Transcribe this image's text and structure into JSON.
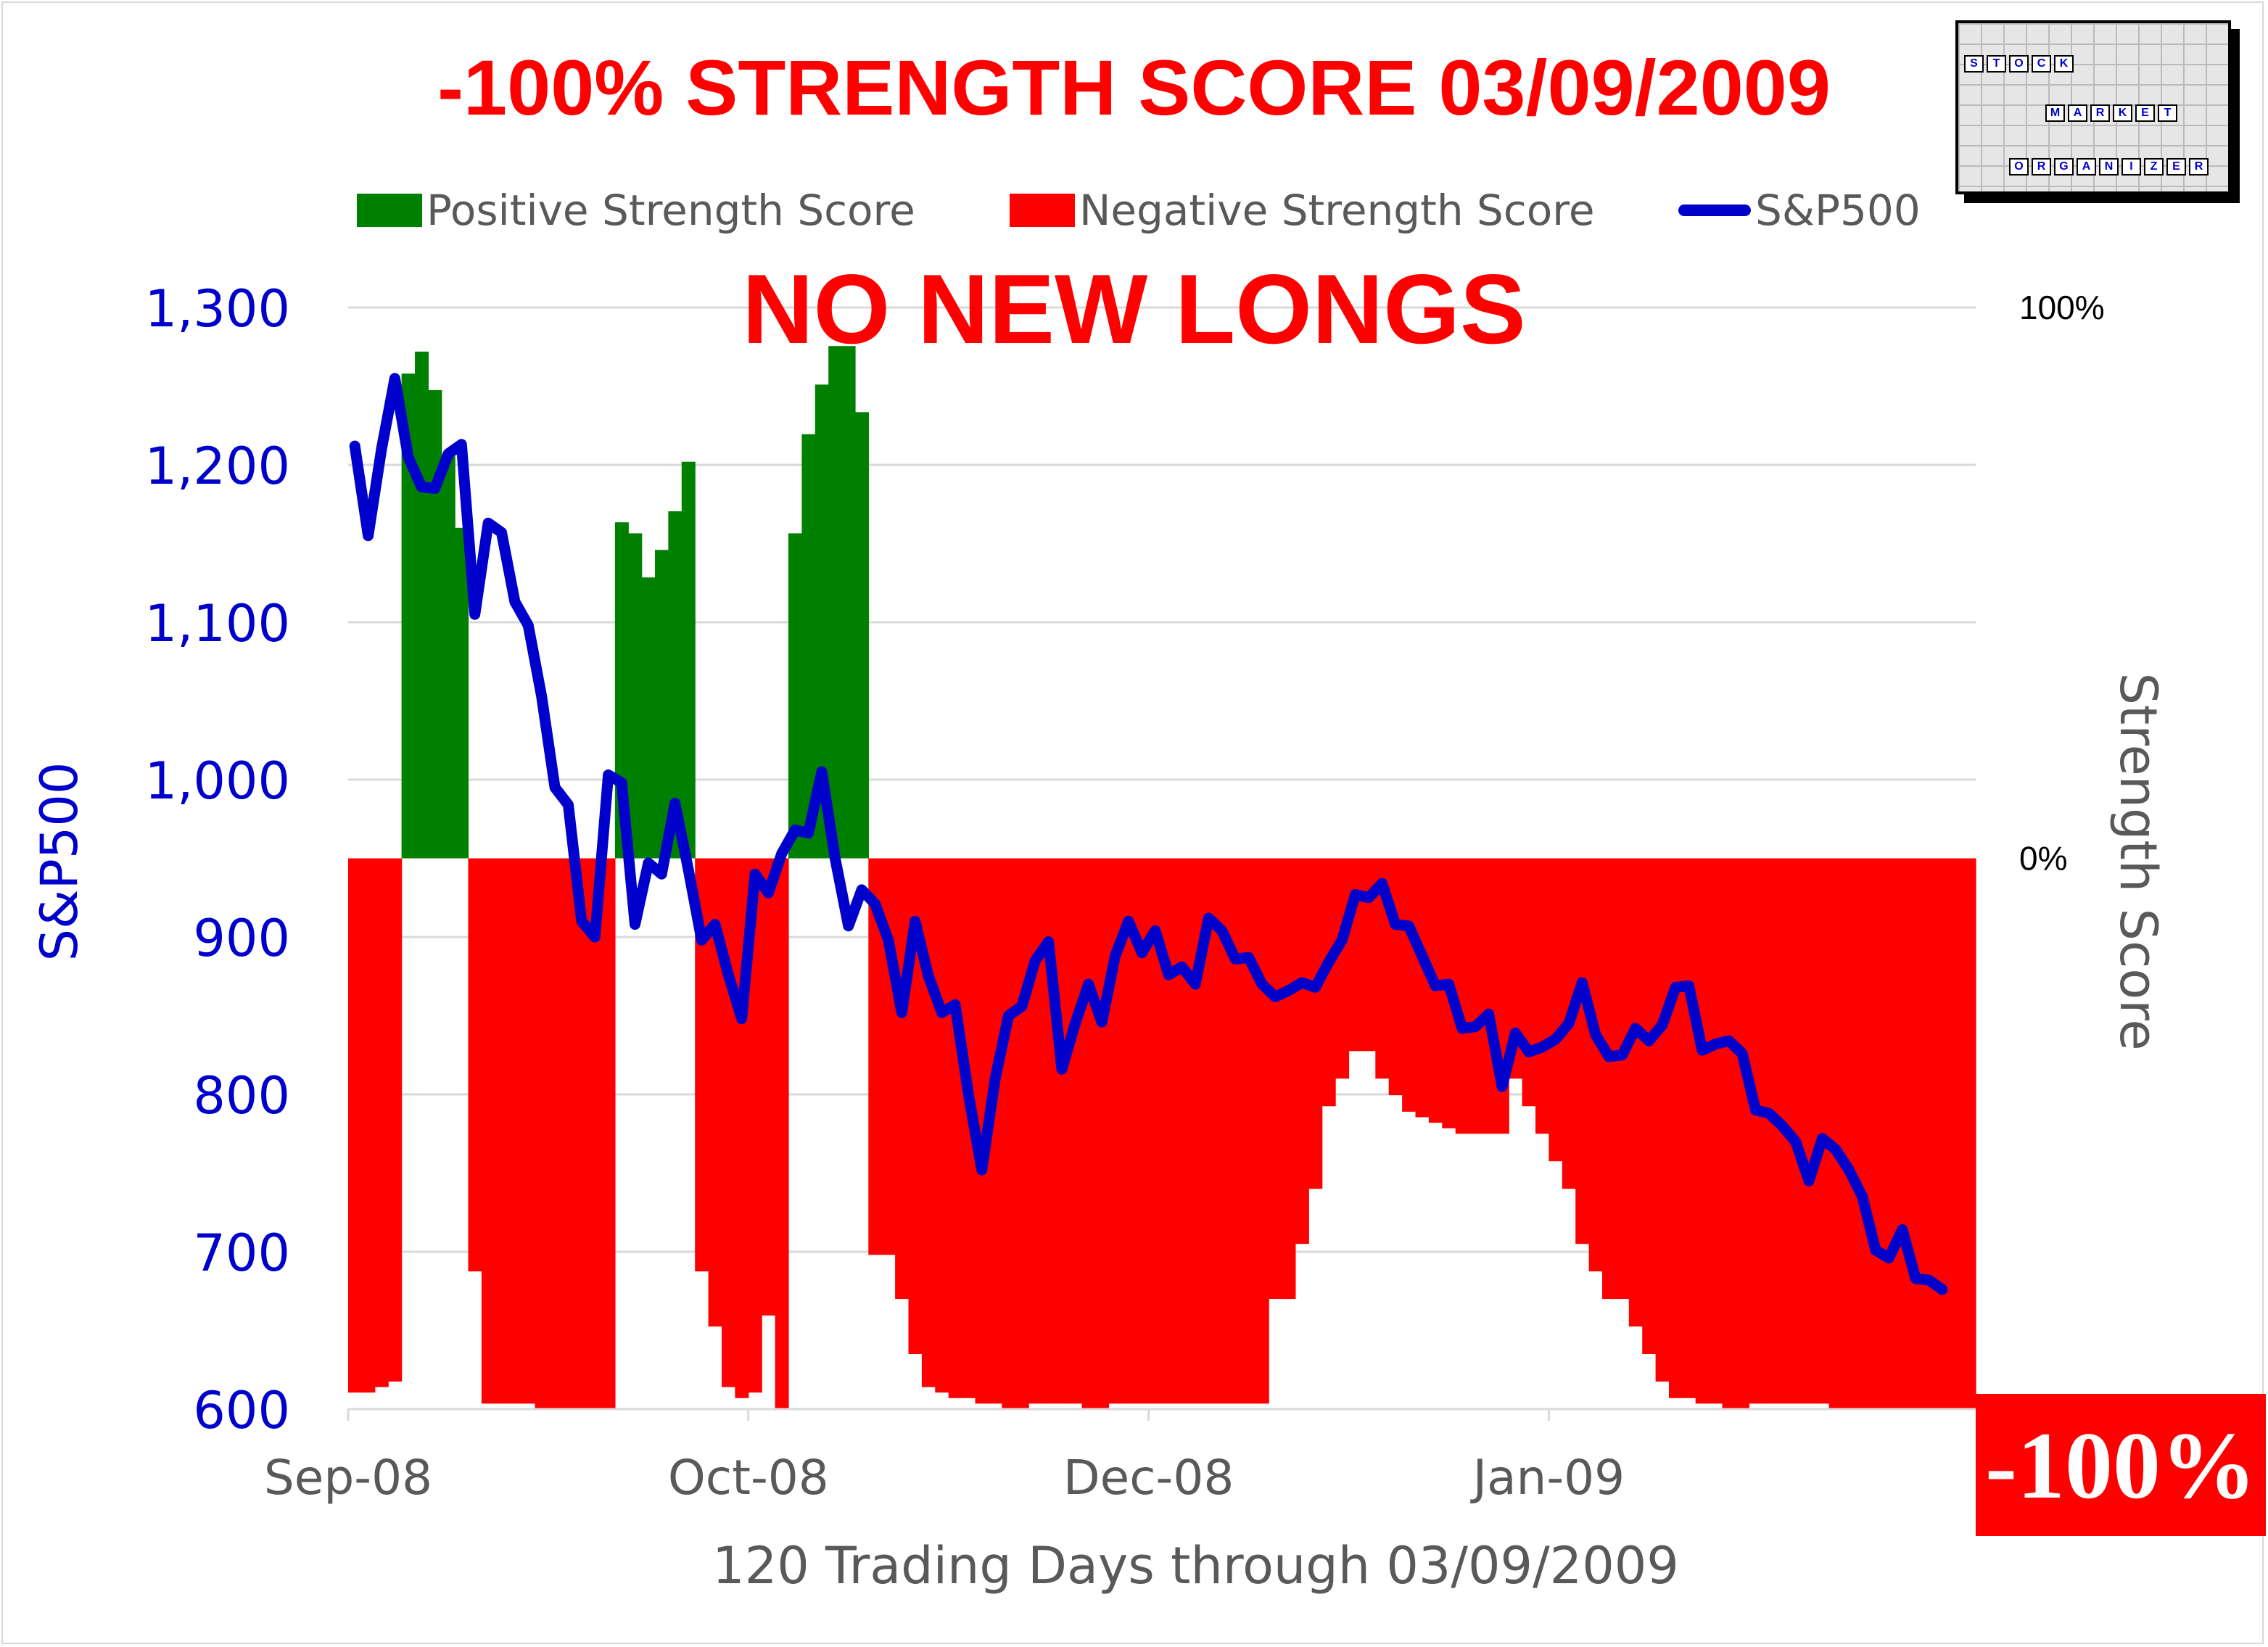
{
  "title": "-100% STRENGTH SCORE 03/09/2009",
  "banner": "NO NEW LONGS",
  "badge": "-100%",
  "logo": {
    "words": [
      "STOCK",
      "MARKET",
      "ORGANIZER"
    ]
  },
  "colors": {
    "positive": "#008000",
    "negative": "#ff0000",
    "line": "#0000cc",
    "title": "#ff0000"
  },
  "chart_data": {
    "type": "bar+line",
    "xlabel": "120 Trading Days through 03/09/2009",
    "ylabel_left": "S&P500",
    "ylabel_right": "Strength Score",
    "ylim_left": [
      600,
      1300
    ],
    "yticks_left": [
      "1,300",
      "1,200",
      "1,100",
      "1,000",
      "900",
      "800",
      "700",
      "600"
    ],
    "ylim_right": [
      -100,
      100
    ],
    "yticks_right": [
      "100%",
      "0%",
      "-100%"
    ],
    "x_ticks": [
      {
        "index": 0,
        "label": "Sep-08"
      },
      {
        "index": 30,
        "label": "Oct-08"
      },
      {
        "index": 60,
        "label": "Dec-08"
      },
      {
        "index": 90,
        "label": "Jan-09"
      }
    ],
    "grid": true,
    "legend_position": "top",
    "legend": [
      "Positive Strength Score",
      "Negative Strength Score",
      "S&P500"
    ],
    "series": [
      {
        "name": "Strength Score",
        "type": "bar",
        "unit": "%",
        "values": [
          -97,
          -97,
          -96,
          -95,
          88,
          92,
          85,
          73,
          60,
          -75,
          -99,
          -99,
          -99,
          -99,
          -100,
          -100,
          -100,
          -100,
          -100,
          -100,
          61,
          59,
          51,
          56,
          63,
          72,
          -75,
          -85,
          -96,
          -98,
          -97,
          -83,
          -100,
          59,
          77,
          86,
          93,
          93,
          81,
          -72,
          -72,
          -80,
          -90,
          -96,
          -97,
          -98,
          -98,
          -99,
          -99,
          -100,
          -100,
          -99,
          -99,
          -99,
          -99,
          -100,
          -100,
          -99,
          -99,
          -99,
          -99,
          -99,
          -99,
          -99,
          -99,
          -99,
          -99,
          -99,
          -99,
          -80,
          -80,
          -70,
          -60,
          -45,
          -40,
          -35,
          -35,
          -40,
          -43,
          -46,
          -47,
          -48,
          -49,
          -50,
          -50,
          -50,
          -50,
          -40,
          -45,
          -50,
          -55,
          -60,
          -70,
          -75,
          -80,
          -80,
          -85,
          -90,
          -95,
          -98,
          -98,
          -99,
          -99,
          -100,
          -100,
          -99,
          -99,
          -99,
          -99,
          -99,
          -99,
          -100,
          -100,
          -100,
          -100,
          -100,
          -100,
          -100,
          -100,
          -100,
          -100,
          -100
        ]
      },
      {
        "name": "S&P500",
        "type": "line",
        "values": [
          1212,
          1155,
          1210,
          1255,
          1205,
          1186,
          1185,
          1207,
          1213,
          1105,
          1163,
          1157,
          1113,
          1098,
          1053,
          995,
          984,
          910,
          900,
          1003,
          998,
          908,
          947,
          940,
          985,
          943,
          898,
          908,
          876,
          848,
          940,
          928,
          953,
          968,
          966,
          1005,
          950,
          907,
          930,
          921,
          898,
          852,
          910,
          875,
          852,
          857,
          800,
          752,
          810,
          850,
          856,
          885,
          897,
          816,
          845,
          870,
          846,
          888,
          910,
          890,
          904,
          876,
          881,
          870,
          912,
          904,
          886,
          887,
          870,
          862,
          866,
          871,
          868,
          884,
          898,
          927,
          925,
          934,
          908,
          907,
          888,
          869,
          870,
          842,
          843,
          851,
          805,
          839,
          827,
          830,
          835,
          845,
          871,
          838,
          824,
          825,
          842,
          834,
          844,
          868,
          869,
          828,
          832,
          834,
          826,
          790,
          788,
          780,
          770,
          745,
          772,
          765,
          752,
          735,
          701,
          696,
          714,
          683,
          682,
          676
        ]
      }
    ],
    "annotations": [
      "NO NEW LONGS",
      "-100%"
    ]
  }
}
